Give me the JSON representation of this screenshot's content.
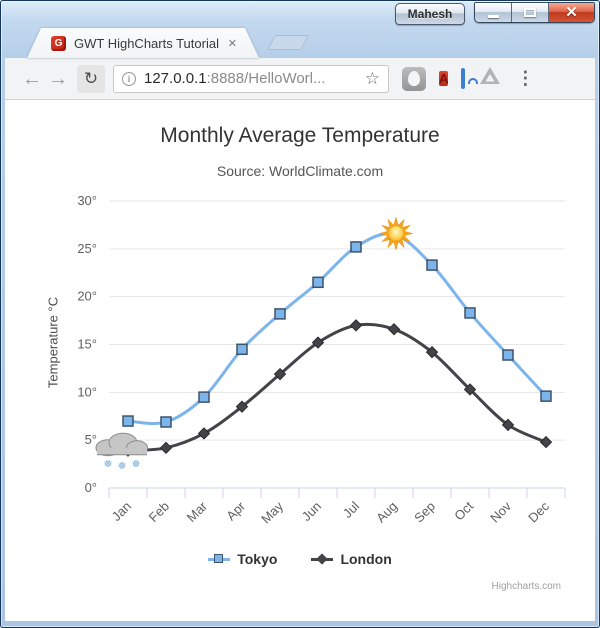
{
  "window": {
    "profile_label": "Mahesh",
    "close_glyph": "✕"
  },
  "tab": {
    "favicon_letter": "G",
    "title": "GWT HighCharts Tutorial",
    "close_glyph": "✕"
  },
  "toolbar": {
    "back_glyph": "←",
    "forward_glyph": "→",
    "reload_glyph": "↻",
    "info_glyph": "i",
    "url_host": "127.0.0.1",
    "url_rest": ":8888/HelloWorl...",
    "star_glyph": "☆",
    "book_letter": "A",
    "menu_glyph": "⋮"
  },
  "chart_data": {
    "type": "line",
    "title": "Monthly Average Temperature",
    "subtitle": "Source: WorldClimate.com",
    "ylabel": "Temperature °C",
    "xlabel": "",
    "ylim": [
      0,
      30
    ],
    "ytick_step": 5,
    "ytick_suffix": "°",
    "grid": true,
    "legend_position": "bottom",
    "categories": [
      "Jan",
      "Feb",
      "Mar",
      "Apr",
      "May",
      "Jun",
      "Jul",
      "Aug",
      "Sep",
      "Oct",
      "Nov",
      "Dec"
    ],
    "series": [
      {
        "name": "Tokyo",
        "color": "#7cb5ec",
        "marker": "square",
        "marker_border": "#3e546a",
        "values": [
          7.0,
          6.9,
          9.5,
          14.5,
          18.2,
          21.5,
          25.2,
          26.5,
          23.3,
          18.3,
          13.9,
          9.6
        ]
      },
      {
        "name": "London",
        "color": "#434348",
        "marker": "diamond",
        "marker_border": "#2b2b30",
        "values": [
          3.9,
          4.2,
          5.7,
          8.5,
          11.9,
          15.2,
          17.0,
          16.6,
          14.2,
          10.3,
          6.6,
          4.8
        ]
      }
    ],
    "annotations": [
      {
        "icon": "sun-icon",
        "series": 0,
        "index": 7
      },
      {
        "icon": "snow-cloud-icon",
        "series": 1,
        "index": 0
      }
    ],
    "colors": {
      "grid": "#e6e6e6",
      "axis_line": "#ccd6eb",
      "tick": "#ccd6eb",
      "axis_label": "#606060"
    },
    "credits": "Highcharts.com"
  }
}
